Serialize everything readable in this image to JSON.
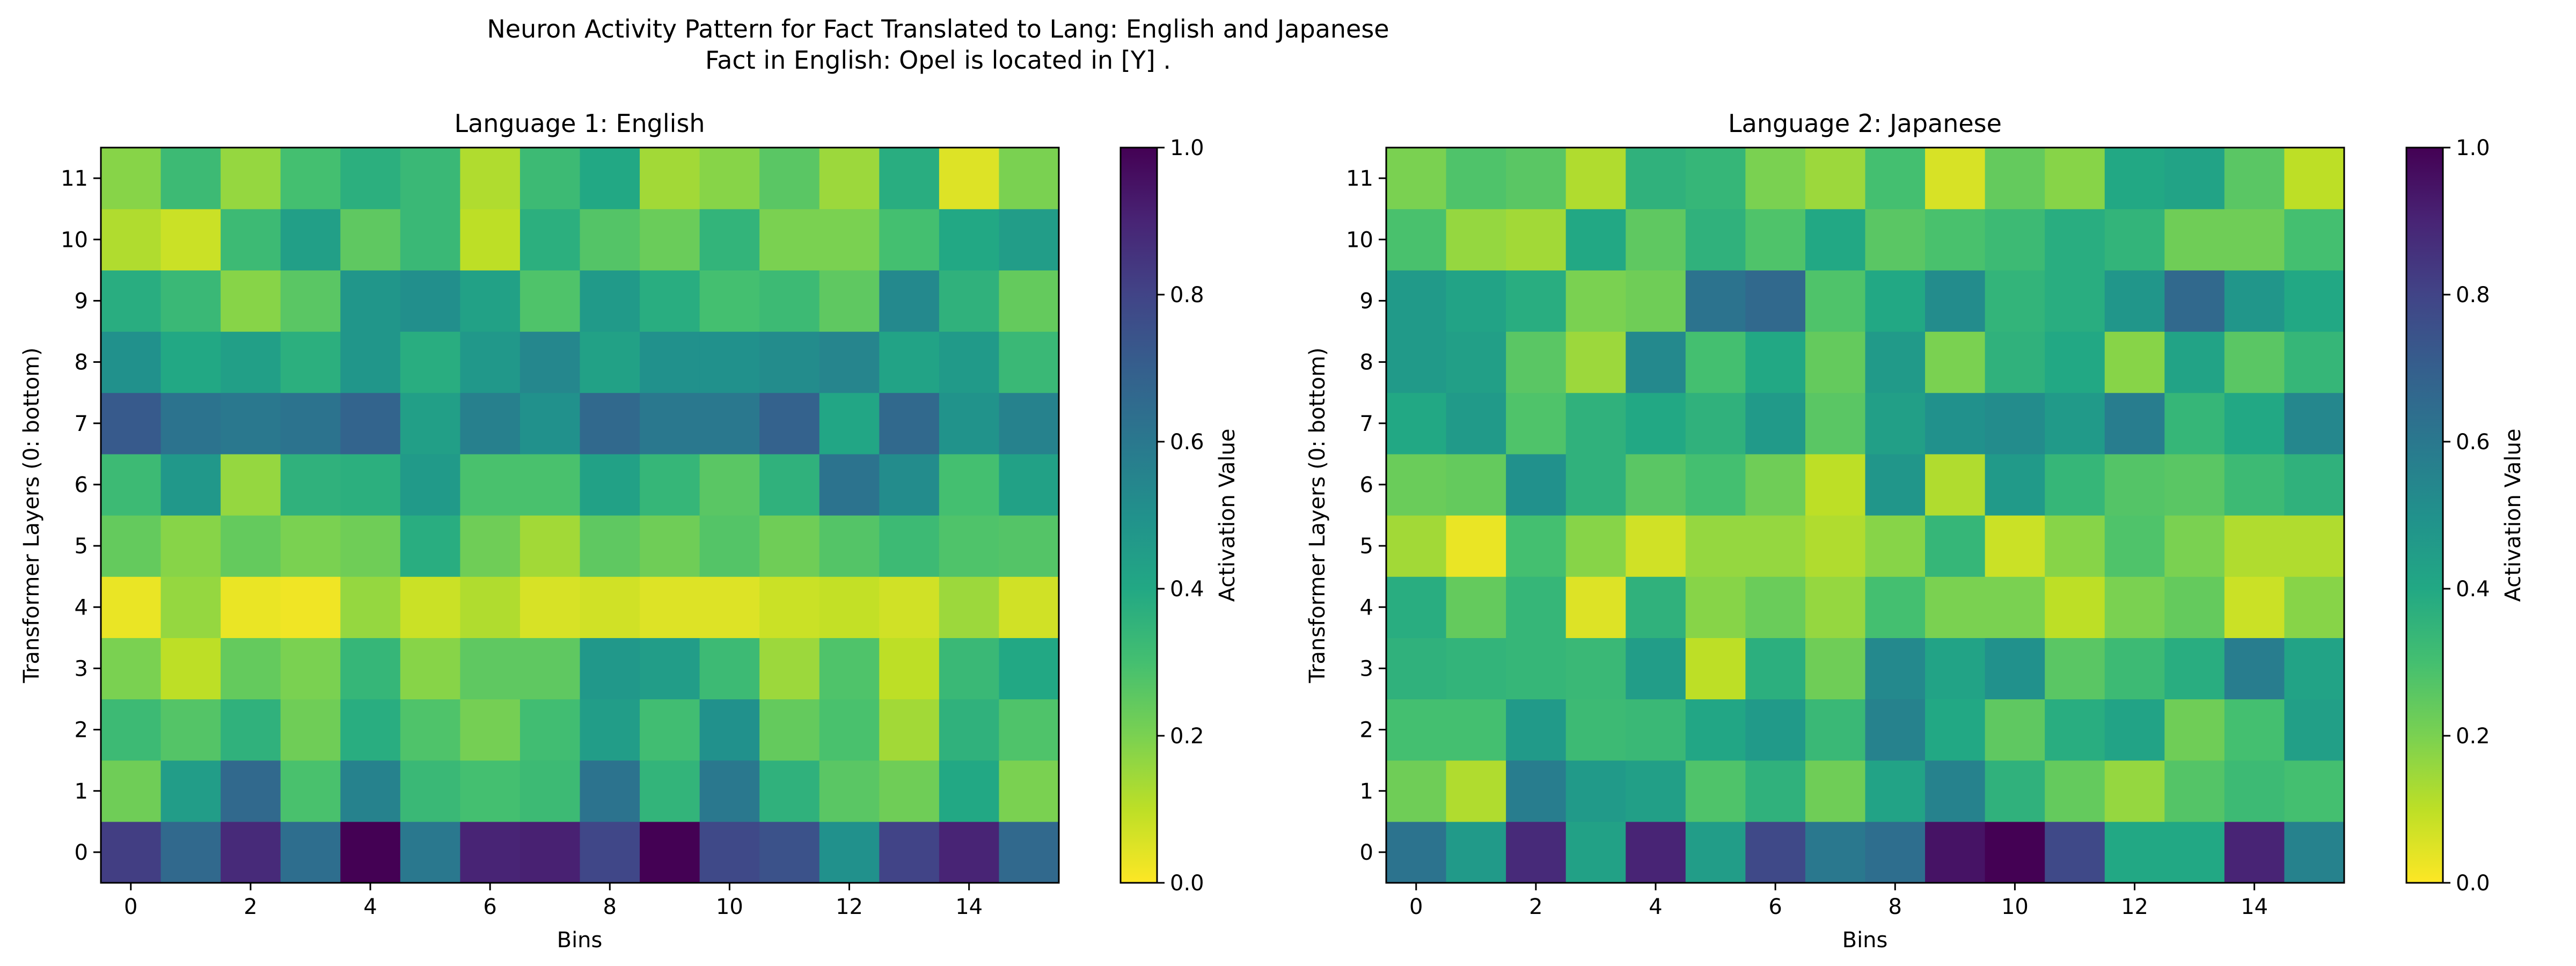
{
  "figure": {
    "title_line1": "Neuron Activity Pattern for Fact Translated to Lang: English and Japanese",
    "title_line2": "Fact in English: Opel is located in [Y] ."
  },
  "chart_data": [
    {
      "type": "heatmap",
      "title": "Language 1: English",
      "xlabel": "Bins",
      "ylabel": "Transformer Layers (0: bottom)",
      "x_ticks": [
        0,
        2,
        4,
        6,
        8,
        10,
        12,
        14
      ],
      "y_ticks": [
        0,
        1,
        2,
        3,
        4,
        5,
        6,
        7,
        8,
        9,
        10,
        11
      ],
      "n_bins": 16,
      "n_layers": 12,
      "colorscale": "viridis_r",
      "colorbar": {
        "label": "Activation Value",
        "range": [
          0.0,
          1.0
        ],
        "ticks": [
          "0.0",
          "0.2",
          "0.4",
          "0.6",
          "0.8",
          "1.0"
        ]
      },
      "values": [
        [
          0.82,
          0.66,
          0.88,
          0.64,
          1.0,
          0.6,
          0.9,
          0.91,
          0.79,
          1.0,
          0.78,
          0.75,
          0.5,
          0.8,
          0.9,
          0.66
        ],
        [
          0.22,
          0.45,
          0.66,
          0.29,
          0.56,
          0.33,
          0.3,
          0.32,
          0.62,
          0.35,
          0.6,
          0.36,
          0.26,
          0.22,
          0.4,
          0.2
        ],
        [
          0.32,
          0.27,
          0.36,
          0.22,
          0.38,
          0.28,
          0.21,
          0.31,
          0.45,
          0.31,
          0.5,
          0.24,
          0.29,
          0.14,
          0.36,
          0.28
        ],
        [
          0.2,
          0.1,
          0.24,
          0.2,
          0.34,
          0.18,
          0.25,
          0.25,
          0.47,
          0.45,
          0.32,
          0.15,
          0.28,
          0.1,
          0.33,
          0.4
        ],
        [
          0.03,
          0.16,
          0.03,
          0.02,
          0.16,
          0.08,
          0.12,
          0.06,
          0.07,
          0.05,
          0.05,
          0.08,
          0.09,
          0.07,
          0.15,
          0.07
        ],
        [
          0.24,
          0.18,
          0.24,
          0.2,
          0.22,
          0.38,
          0.22,
          0.14,
          0.25,
          0.22,
          0.27,
          0.22,
          0.27,
          0.32,
          0.28,
          0.27
        ],
        [
          0.32,
          0.47,
          0.16,
          0.36,
          0.37,
          0.46,
          0.29,
          0.29,
          0.43,
          0.34,
          0.26,
          0.36,
          0.62,
          0.52,
          0.3,
          0.43
        ],
        [
          0.72,
          0.62,
          0.6,
          0.62,
          0.68,
          0.44,
          0.57,
          0.5,
          0.66,
          0.6,
          0.6,
          0.69,
          0.41,
          0.66,
          0.49,
          0.56
        ],
        [
          0.5,
          0.4,
          0.44,
          0.37,
          0.48,
          0.38,
          0.47,
          0.54,
          0.43,
          0.5,
          0.5,
          0.52,
          0.55,
          0.42,
          0.46,
          0.33
        ],
        [
          0.38,
          0.33,
          0.18,
          0.26,
          0.48,
          0.51,
          0.43,
          0.28,
          0.46,
          0.38,
          0.3,
          0.32,
          0.25,
          0.53,
          0.36,
          0.24
        ],
        [
          0.12,
          0.08,
          0.32,
          0.44,
          0.25,
          0.33,
          0.1,
          0.37,
          0.27,
          0.23,
          0.35,
          0.2,
          0.2,
          0.3,
          0.4,
          0.45
        ],
        [
          0.18,
          0.32,
          0.16,
          0.3,
          0.37,
          0.33,
          0.12,
          0.32,
          0.4,
          0.14,
          0.18,
          0.26,
          0.15,
          0.38,
          0.05,
          0.2
        ]
      ]
    },
    {
      "type": "heatmap",
      "title": "Language 2: Japanese",
      "xlabel": "Bins",
      "ylabel": "Transformer Layers (0: bottom)",
      "x_ticks": [
        0,
        2,
        4,
        6,
        8,
        10,
        12,
        14
      ],
      "y_ticks": [
        0,
        1,
        2,
        3,
        4,
        5,
        6,
        7,
        8,
        9,
        10,
        11
      ],
      "n_bins": 16,
      "n_layers": 12,
      "colorscale": "viridis_r",
      "colorbar": {
        "label": "Activation Value",
        "range": [
          0.0,
          1.0
        ],
        "ticks": [
          "0.0",
          "0.2",
          "0.4",
          "0.6",
          "0.8",
          "1.0"
        ]
      },
      "values": [
        [
          0.62,
          0.46,
          0.88,
          0.43,
          0.9,
          0.45,
          0.78,
          0.6,
          0.64,
          0.95,
          1.0,
          0.78,
          0.4,
          0.4,
          0.9,
          0.56
        ],
        [
          0.22,
          0.12,
          0.58,
          0.46,
          0.44,
          0.28,
          0.36,
          0.22,
          0.42,
          0.56,
          0.36,
          0.24,
          0.16,
          0.27,
          0.32,
          0.3
        ],
        [
          0.3,
          0.3,
          0.46,
          0.32,
          0.33,
          0.41,
          0.46,
          0.33,
          0.56,
          0.4,
          0.25,
          0.38,
          0.42,
          0.22,
          0.3,
          0.44
        ],
        [
          0.36,
          0.35,
          0.34,
          0.33,
          0.45,
          0.1,
          0.37,
          0.22,
          0.53,
          0.42,
          0.5,
          0.26,
          0.32,
          0.38,
          0.58,
          0.42
        ],
        [
          0.38,
          0.24,
          0.34,
          0.05,
          0.36,
          0.18,
          0.23,
          0.16,
          0.3,
          0.2,
          0.2,
          0.1,
          0.2,
          0.24,
          0.08,
          0.18
        ],
        [
          0.14,
          0.03,
          0.3,
          0.18,
          0.07,
          0.16,
          0.16,
          0.12,
          0.18,
          0.34,
          0.08,
          0.18,
          0.28,
          0.2,
          0.12,
          0.12
        ],
        [
          0.23,
          0.24,
          0.5,
          0.36,
          0.26,
          0.3,
          0.22,
          0.1,
          0.48,
          0.12,
          0.46,
          0.34,
          0.27,
          0.26,
          0.32,
          0.36
        ],
        [
          0.4,
          0.46,
          0.28,
          0.36,
          0.4,
          0.36,
          0.46,
          0.26,
          0.44,
          0.5,
          0.52,
          0.46,
          0.58,
          0.34,
          0.4,
          0.54
        ],
        [
          0.46,
          0.44,
          0.26,
          0.15,
          0.53,
          0.3,
          0.4,
          0.24,
          0.46,
          0.2,
          0.36,
          0.4,
          0.18,
          0.42,
          0.26,
          0.34
        ],
        [
          0.46,
          0.42,
          0.38,
          0.2,
          0.22,
          0.62,
          0.66,
          0.28,
          0.4,
          0.52,
          0.35,
          0.38,
          0.48,
          0.66,
          0.48,
          0.4
        ],
        [
          0.29,
          0.16,
          0.14,
          0.4,
          0.25,
          0.36,
          0.28,
          0.4,
          0.26,
          0.29,
          0.32,
          0.38,
          0.35,
          0.22,
          0.22,
          0.3
        ],
        [
          0.2,
          0.28,
          0.26,
          0.12,
          0.36,
          0.34,
          0.2,
          0.15,
          0.3,
          0.06,
          0.24,
          0.18,
          0.4,
          0.42,
          0.26,
          0.1
        ]
      ]
    }
  ]
}
